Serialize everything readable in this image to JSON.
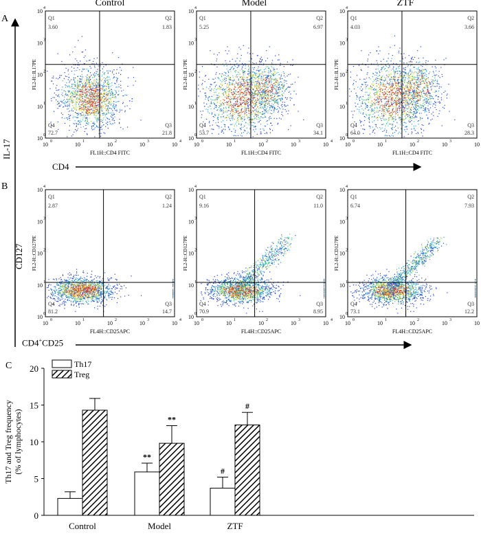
{
  "panel_labels": {
    "a": "A",
    "b": "B",
    "c": "C"
  },
  "column_titles": [
    "Control",
    "Model",
    "ZTF"
  ],
  "row_a": {
    "y_axis_label": "FL2-H::IL17PE",
    "x_axis_label": "FL1H::CD4 FITC",
    "plots": [
      {
        "name": "Control",
        "q1": "3.60",
        "q2": "1.83",
        "q3": "21.8",
        "q4": "72.7"
      },
      {
        "name": "Model",
        "q1": "5.25",
        "q2": "6.97",
        "q3": "34.1",
        "q4": "53.7"
      },
      {
        "name": "ZTF",
        "q1": "4.03",
        "q2": "3.66",
        "q3": "28.3",
        "q4": "64.0"
      }
    ]
  },
  "row_b": {
    "y_axis_label": "FL2-H::CD127PE",
    "x_axis_label": "FL4H::CD25APC",
    "plots": [
      {
        "name": "Control",
        "q1": "2.87",
        "q2": "1.24",
        "q3": "14.7",
        "q4": "81.2"
      },
      {
        "name": "Model",
        "q1": "9.16",
        "q2": "11.0",
        "q3": "8.95",
        "q4": "70.9"
      },
      {
        "name": "ZTF",
        "q1": "6.74",
        "q2": "7.93",
        "q3": "12.2",
        "q4": "73.1"
      }
    ]
  },
  "big_labels": {
    "il17": "IL-17",
    "cd4": "CD4",
    "cd127": "CD127",
    "cd4cd25_main": "CD4",
    "cd4cd25_sup": "+",
    "cd4cd25_tail": "CD25"
  },
  "log_ticks": [
    "10",
    "10",
    "10",
    "10",
    "10"
  ],
  "log_exps": [
    "0",
    "1",
    "2",
    "3",
    "4"
  ],
  "chart_data": {
    "type": "bar",
    "title": "",
    "categories": [
      "Control",
      "Model",
      "ZTF"
    ],
    "ylabel_line1": "Th17 and Treg frequency",
    "ylabel_line2": "(% of lymphocytes)",
    "xlabel": "",
    "ylim": [
      0,
      20
    ],
    "yticks": [
      0,
      5,
      10,
      15,
      20
    ],
    "series": [
      {
        "name": "Th17",
        "values": [
          2.3,
          5.9,
          3.7
        ],
        "errors": [
          0.9,
          1.2,
          1.5
        ],
        "annotations": [
          "",
          "**",
          "#"
        ]
      },
      {
        "name": "Treg",
        "values": [
          14.3,
          9.8,
          12.3
        ],
        "errors": [
          1.6,
          2.4,
          1.7
        ],
        "annotations": [
          "",
          "**",
          "#"
        ]
      }
    ],
    "legend": [
      "Th17",
      "Treg"
    ]
  }
}
